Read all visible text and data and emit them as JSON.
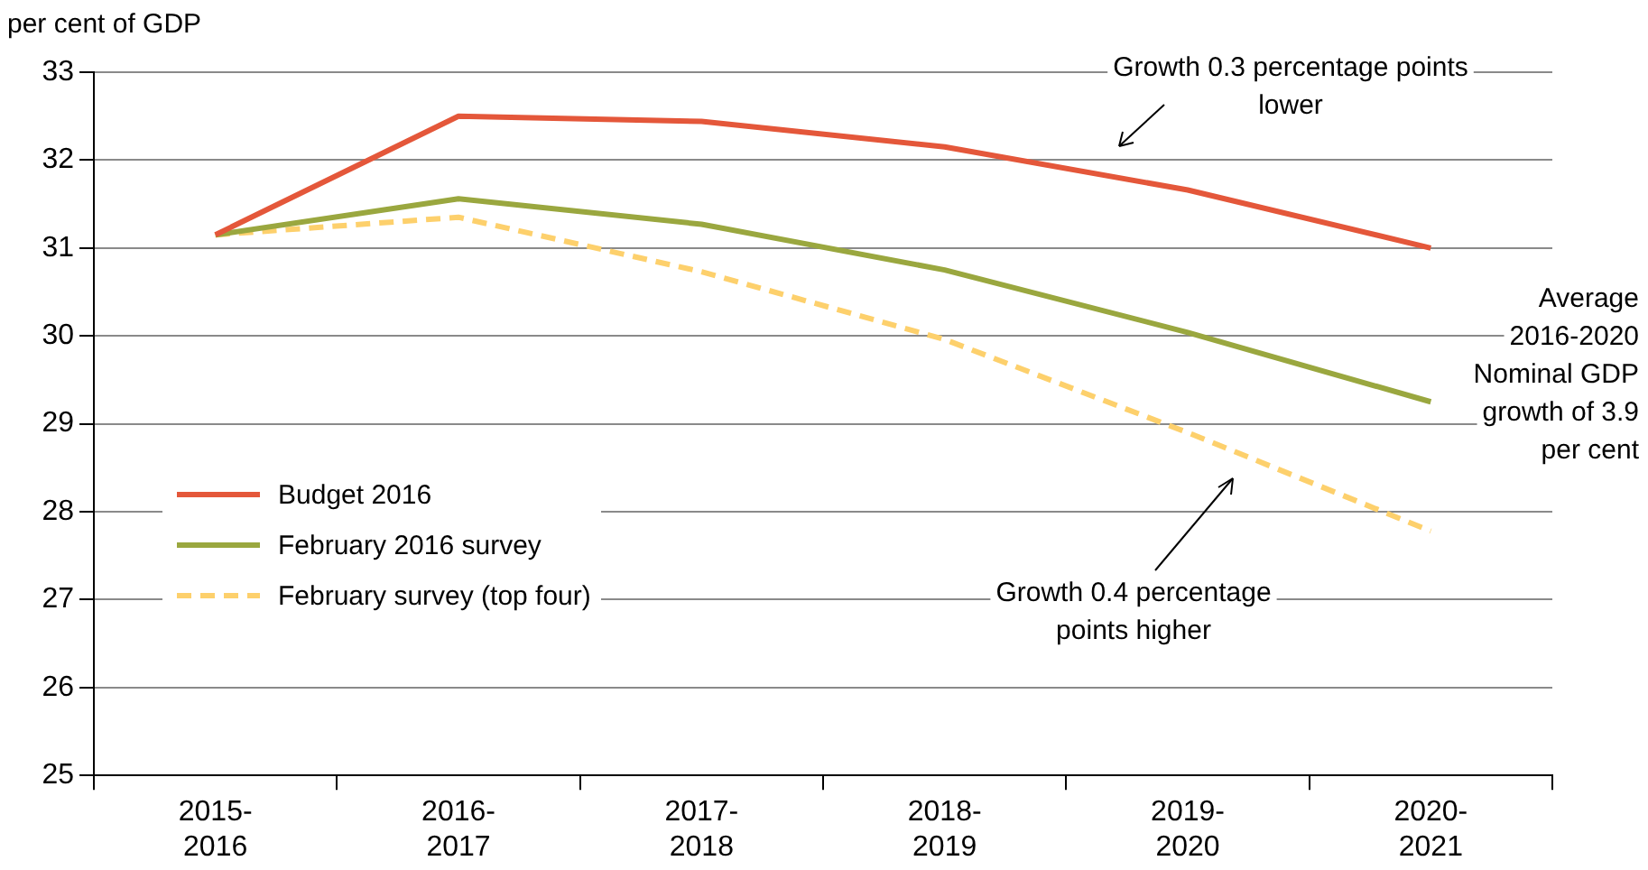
{
  "chart_data": {
    "type": "line",
    "ylabel": "per cent of GDP",
    "categories": [
      "2015-2016",
      "2016-2017",
      "2017-2018",
      "2018-2019",
      "2019-2020",
      "2020-2021"
    ],
    "series": [
      {
        "name": "Budget 2016",
        "color": "#e4573a",
        "values": [
          31.15,
          32.5,
          32.44,
          32.15,
          31.66,
          31.0
        ],
        "line_style": "solid"
      },
      {
        "name": "February 2016 survey",
        "color": "#9aa73f",
        "values": [
          31.15,
          31.56,
          31.27,
          30.75,
          30.04,
          29.25
        ],
        "line_style": "solid"
      },
      {
        "name": "February survey (top four)",
        "color": "#fdd06c",
        "values": [
          31.15,
          31.35,
          30.73,
          29.96,
          28.9,
          27.78
        ],
        "line_style": "dashed"
      }
    ],
    "ylim": [
      25,
      33
    ],
    "yticks": [
      25,
      26,
      27,
      28,
      29,
      30,
      31,
      32,
      33
    ],
    "grid": "y",
    "legend": "left",
    "marker": "none",
    "annotations": [
      "Growth 0.3 percentage points\nlower",
      "Growth 0.4 percentage\npoints higher",
      "Average\n2016-2020\nNominal GDP\ngrowth of 3.9\nper cent"
    ]
  }
}
